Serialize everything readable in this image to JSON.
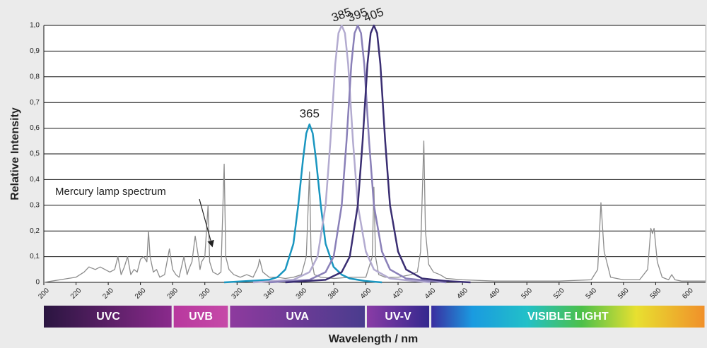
{
  "chart_data": {
    "type": "line",
    "xlabel": "Wavelength / nm",
    "ylabel": "Relative Intensity",
    "xlim": [
      200,
      611
    ],
    "ylim": [
      0,
      1
    ],
    "xticks": [
      200,
      220,
      240,
      260,
      280,
      300,
      320,
      340,
      360,
      380,
      400,
      420,
      440,
      460,
      480,
      500,
      520,
      540,
      560,
      580,
      600
    ],
    "yticks": [
      0,
      {
        "value": 0.1,
        "label": "0,1"
      },
      {
        "value": 0.2,
        "label": "0,2"
      },
      {
        "value": 0.3,
        "label": "0,3"
      },
      {
        "value": 0.4,
        "label": "0,4"
      },
      {
        "value": 0.5,
        "label": "0,5"
      },
      {
        "value": 0.6,
        "label": "0,6"
      },
      {
        "value": 0.7,
        "label": "0,7"
      },
      {
        "value": 0.8,
        "label": "0,8"
      },
      {
        "value": 0.9,
        "label": "0,9"
      },
      {
        "value": 1.0,
        "label": "1,0"
      }
    ],
    "grid": true,
    "regions": [
      {
        "label": "UVC",
        "start": 200,
        "end": 280
      },
      {
        "label": "UVB",
        "start": 280,
        "end": 315
      },
      {
        "label": "UVA",
        "start": 315,
        "end": 400
      },
      {
        "label": "UV-V",
        "start": 400,
        "end": 440
      },
      {
        "label": "VISIBLE LIGHT",
        "start": 440,
        "end": 611
      }
    ],
    "series": [
      {
        "name": "Mercury lamp spectrum",
        "color": "#8c8c8c",
        "x": [
          200,
          205,
          210,
          215,
          220,
          225,
          228,
          232,
          235,
          238,
          241,
          244,
          246,
          248,
          250,
          252,
          254,
          256,
          258,
          260,
          262,
          264,
          265,
          266,
          268,
          270,
          272,
          275,
          278,
          280,
          282,
          284,
          287,
          289,
          290,
          292,
          294,
          296,
          297,
          298,
          300,
          302,
          303,
          305,
          308,
          310,
          312,
          313,
          315,
          318,
          322,
          326,
          330,
          333,
          334,
          336,
          340,
          345,
          350,
          355,
          360,
          363,
          365,
          366,
          368,
          372,
          380,
          390,
          400,
          404,
          405,
          406,
          408,
          412,
          420,
          428,
          432,
          434,
          436,
          437,
          439,
          442,
          446,
          450,
          460,
          480,
          500,
          520,
          540,
          544,
          546,
          548,
          552,
          560,
          570,
          575,
          577,
          578,
          579,
          581,
          584,
          588,
          590,
          592,
          596,
          600,
          605,
          611
        ],
        "values": [
          0,
          0.005,
          0.01,
          0.015,
          0.02,
          0.04,
          0.06,
          0.05,
          0.06,
          0.05,
          0.04,
          0.05,
          0.1,
          0.03,
          0.06,
          0.1,
          0.03,
          0.05,
          0.04,
          0.09,
          0.1,
          0.08,
          0.2,
          0.1,
          0.04,
          0.05,
          0.02,
          0.03,
          0.13,
          0.05,
          0.03,
          0.02,
          0.1,
          0.03,
          0.05,
          0.08,
          0.18,
          0.1,
          0.05,
          0.08,
          0.1,
          0.3,
          0.08,
          0.04,
          0.03,
          0.04,
          0.46,
          0.1,
          0.05,
          0.03,
          0.02,
          0.03,
          0.02,
          0.06,
          0.09,
          0.04,
          0.02,
          0.02,
          0.015,
          0.02,
          0.03,
          0.1,
          0.43,
          0.1,
          0.03,
          0.02,
          0.015,
          0.02,
          0.02,
          0.1,
          0.37,
          0.1,
          0.03,
          0.02,
          0.02,
          0.03,
          0.04,
          0.12,
          0.55,
          0.2,
          0.07,
          0.04,
          0.03,
          0.015,
          0.01,
          0.005,
          0.005,
          0.005,
          0.01,
          0.05,
          0.31,
          0.12,
          0.02,
          0.01,
          0.01,
          0.05,
          0.21,
          0.19,
          0.21,
          0.08,
          0.02,
          0.01,
          0.03,
          0.01,
          0.005,
          0.005,
          0.005,
          0.005
        ]
      },
      {
        "name": "365",
        "color": "#1a96c0",
        "x": [
          312,
          340,
          345,
          350,
          355,
          358,
          361,
          363,
          365,
          367,
          369,
          372,
          375,
          380,
          385,
          390,
          400,
          410
        ],
        "values": [
          0,
          0.01,
          0.02,
          0.05,
          0.15,
          0.3,
          0.48,
          0.58,
          0.615,
          0.58,
          0.48,
          0.3,
          0.15,
          0.06,
          0.03,
          0.015,
          0.005,
          0
        ]
      },
      {
        "name": "385",
        "color": "#b3abd0",
        "x": [
          330,
          355,
          365,
          370,
          375,
          378,
          381,
          383,
          385,
          387,
          389,
          392,
          395,
          400,
          405,
          415,
          430,
          440
        ],
        "values": [
          0,
          0.01,
          0.04,
          0.1,
          0.3,
          0.55,
          0.85,
          0.97,
          1.0,
          0.97,
          0.85,
          0.55,
          0.3,
          0.12,
          0.05,
          0.015,
          0.005,
          0
        ]
      },
      {
        "name": "395",
        "color": "#8a80b8",
        "x": [
          340,
          365,
          375,
          380,
          385,
          388,
          391,
          393,
          395,
          397,
          399,
          402,
          405,
          410,
          415,
          425,
          440,
          450
        ],
        "values": [
          0,
          0.01,
          0.04,
          0.1,
          0.3,
          0.55,
          0.85,
          0.97,
          1.0,
          0.97,
          0.85,
          0.55,
          0.3,
          0.12,
          0.05,
          0.015,
          0.005,
          0
        ]
      },
      {
        "name": "405",
        "color": "#3a2e72",
        "x": [
          350,
          375,
          385,
          390,
          395,
          398,
          401,
          403,
          405,
          407,
          409,
          412,
          415,
          420,
          425,
          435,
          450,
          465
        ],
        "values": [
          0,
          0.01,
          0.04,
          0.1,
          0.3,
          0.55,
          0.85,
          0.97,
          1.0,
          0.97,
          0.85,
          0.55,
          0.3,
          0.12,
          0.05,
          0.015,
          0.005,
          0
        ]
      }
    ]
  }
}
